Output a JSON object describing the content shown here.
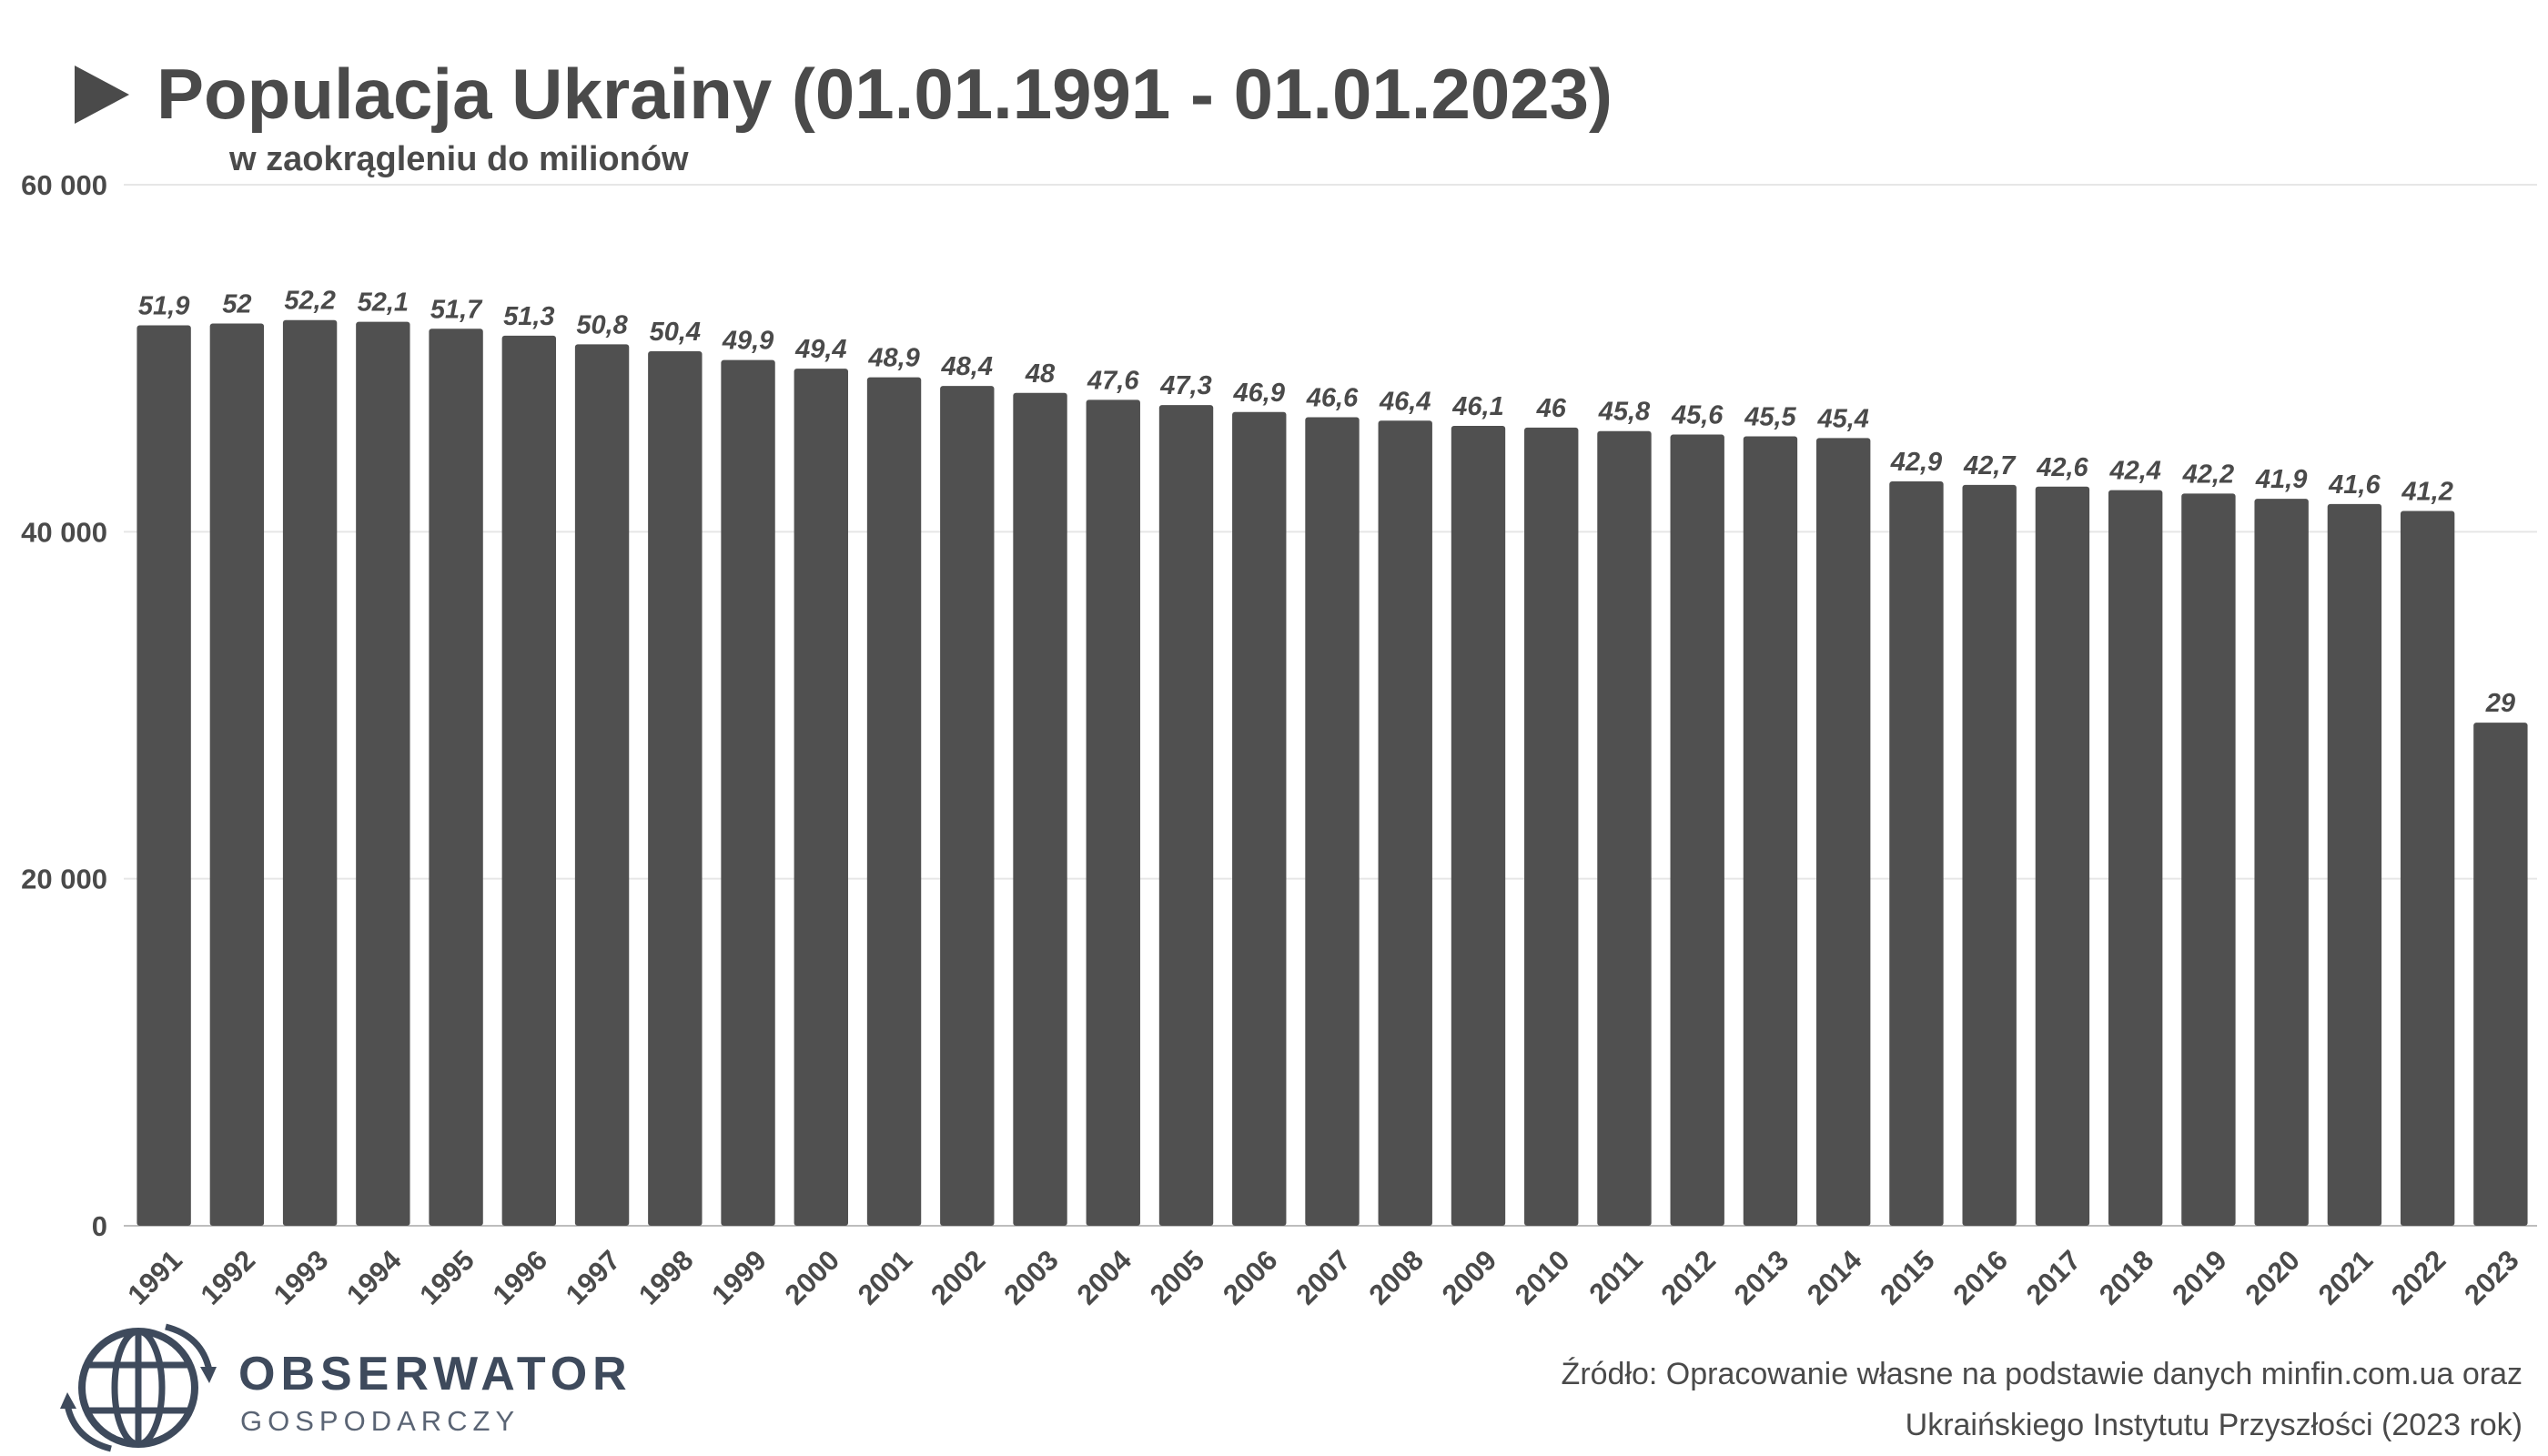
{
  "header": {
    "title": "Populacja Ukrainy (01.01.1991 - 01.01.2023)",
    "subtitle": "w zaokrągleniu do milionów"
  },
  "logo": {
    "line1": "OBSERWATOR",
    "line2": "GOSPODARCZY"
  },
  "source": {
    "line1": "Źródło: Opracowanie własne na podstawie danych minfin.com.ua oraz",
    "line2": "Ukraińskiego Instytutu Przyszłości (2023 rok)"
  },
  "colors": {
    "bar": "#505050",
    "text": "#4a4a4a",
    "grid": "#e6e6e6",
    "logo": "#3e4a5c"
  },
  "chart_data": {
    "type": "bar",
    "title": "Populacja Ukrainy (01.01.1991 - 01.01.2023)",
    "subtitle": "w zaokrągleniu do milionów",
    "categories": [
      "1991",
      "1992",
      "1993",
      "1994",
      "1995",
      "1996",
      "1997",
      "1998",
      "1999",
      "2000",
      "2001",
      "2002",
      "2003",
      "2004",
      "2005",
      "2006",
      "2007",
      "2008",
      "2009",
      "2010",
      "2011",
      "2012",
      "2013",
      "2014",
      "2015",
      "2016",
      "2017",
      "2018",
      "2019",
      "2020",
      "2021",
      "2022",
      "2023"
    ],
    "values": [
      51.9,
      52,
      52.2,
      52.1,
      51.7,
      51.3,
      50.8,
      50.4,
      49.9,
      49.4,
      48.9,
      48.4,
      48,
      47.6,
      47.3,
      46.9,
      46.6,
      46.4,
      46.1,
      46,
      45.8,
      45.6,
      45.5,
      45.4,
      42.9,
      42.7,
      42.6,
      42.4,
      42.2,
      41.9,
      41.6,
      41.2,
      29
    ],
    "data_labels": [
      "51,9",
      "52",
      "52,2",
      "52,1",
      "51,7",
      "51,3",
      "50,8",
      "50,4",
      "49,9",
      "49,4",
      "48,9",
      "48,4",
      "48",
      "47,6",
      "47,3",
      "46,9",
      "46,6",
      "46,4",
      "46,1",
      "46",
      "45,8",
      "45,6",
      "45,5",
      "45,4",
      "42,9",
      "42,7",
      "42,6",
      "42,4",
      "42,2",
      "41,9",
      "41,6",
      "41,2",
      "29"
    ],
    "y_ticks": [
      0,
      20000,
      40000,
      60000
    ],
    "y_tick_labels": [
      "0",
      "20 000",
      "40 000",
      "60 000"
    ],
    "ylim": [
      0,
      60000
    ],
    "value_scale": 1000,
    "grid": true,
    "legend": "none"
  }
}
